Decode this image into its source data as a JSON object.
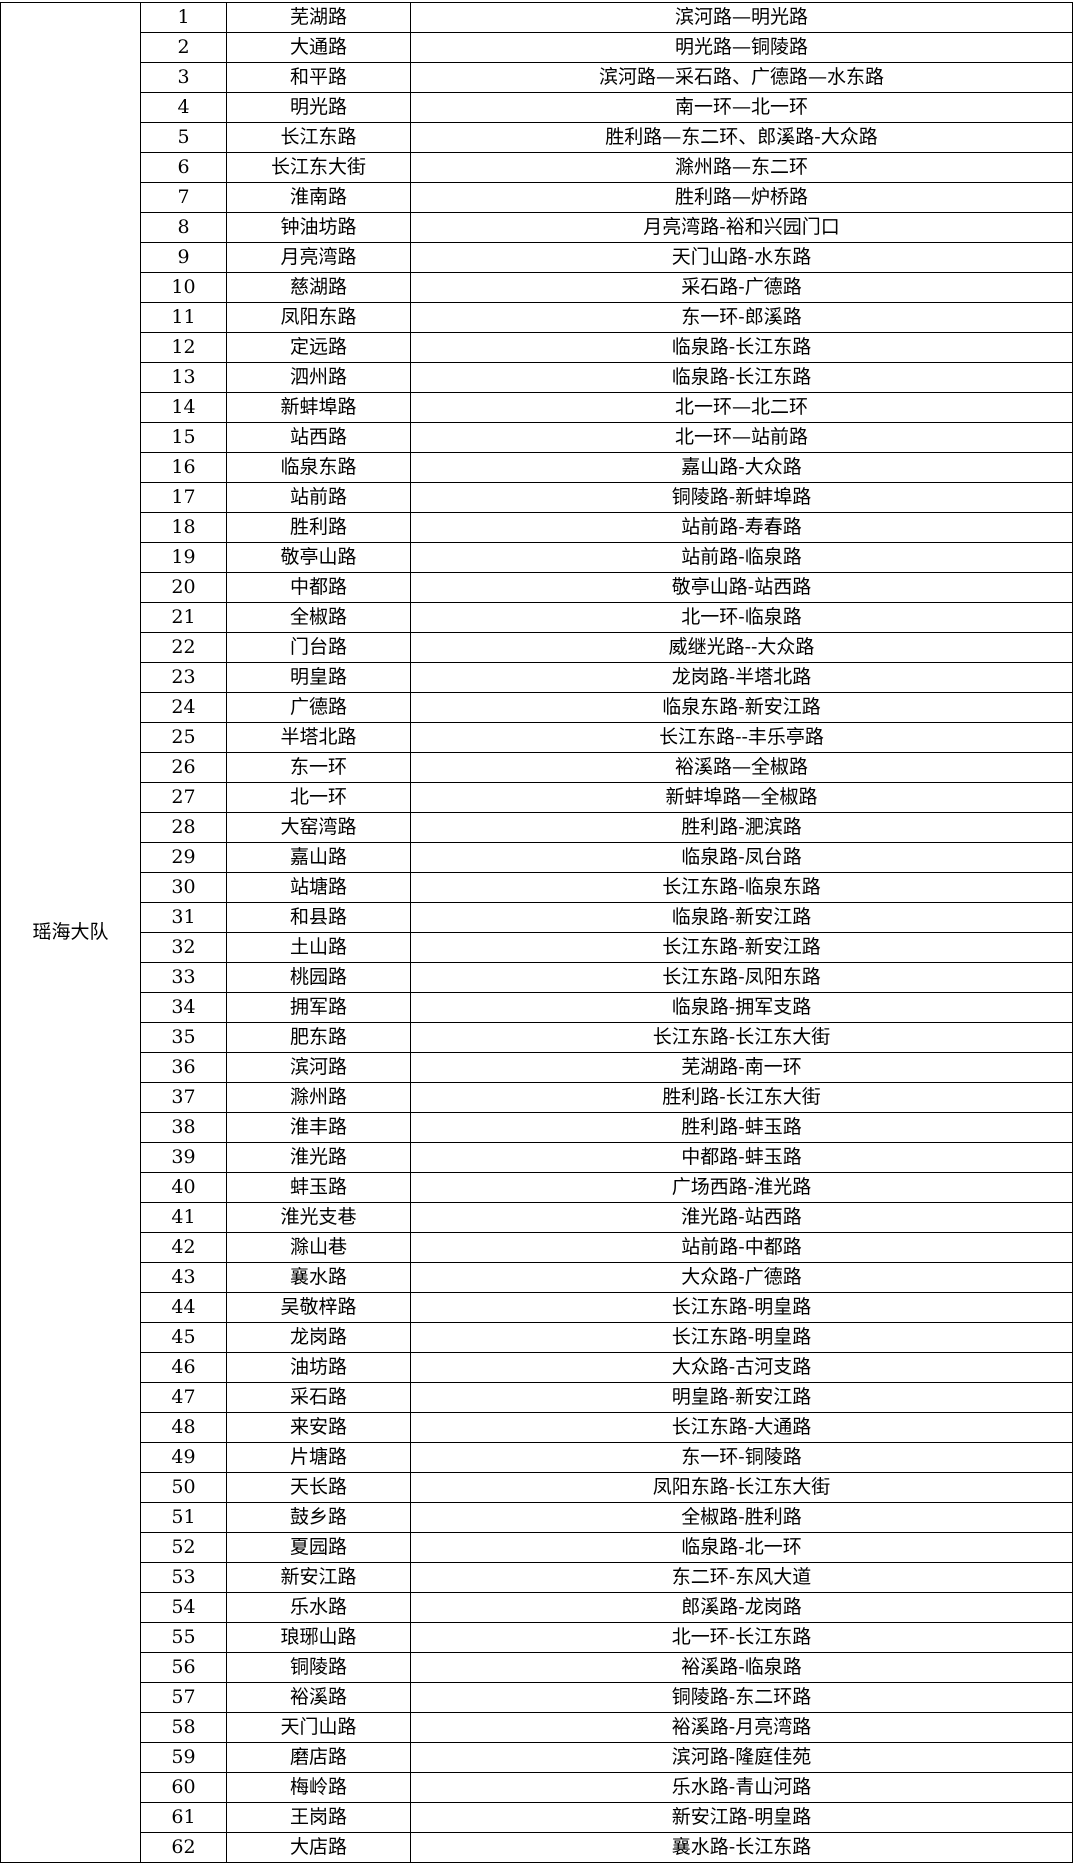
{
  "group": "瑶海大队",
  "rows": [
    [
      1,
      "芜湖路",
      "滨河路—明光路"
    ],
    [
      2,
      "大通路",
      "明光路—铜陵路"
    ],
    [
      3,
      "和平路",
      "滨河路—采石路、广德路—水东路"
    ],
    [
      4,
      "明光路",
      "南一环—北一环"
    ],
    [
      5,
      "长江东路",
      "胜利路—东二环、郎溪路-大众路"
    ],
    [
      6,
      "长江东大街",
      "滁州路—东二环"
    ],
    [
      7,
      "淮南路",
      "胜利路—炉桥路"
    ],
    [
      8,
      "钟油坊路",
      "月亮湾路-裕和兴园门口"
    ],
    [
      9,
      "月亮湾路",
      "天门山路-水东路"
    ],
    [
      10,
      "慈湖路",
      "采石路-广德路"
    ],
    [
      11,
      "凤阳东路",
      "东一环-郎溪路"
    ],
    [
      12,
      "定远路",
      "临泉路-长江东路"
    ],
    [
      13,
      "泗州路",
      "临泉路-长江东路"
    ],
    [
      14,
      "新蚌埠路",
      "北一环—北二环"
    ],
    [
      15,
      "站西路",
      "北一环—站前路"
    ],
    [
      16,
      "临泉东路",
      "嘉山路-大众路"
    ],
    [
      17,
      "站前路",
      "铜陵路-新蚌埠路"
    ],
    [
      18,
      "胜利路",
      "站前路-寿春路"
    ],
    [
      19,
      "敬亭山路",
      "站前路-临泉路"
    ],
    [
      20,
      "中都路",
      "敬亭山路-站西路"
    ],
    [
      21,
      "全椒路",
      "北一环-临泉路"
    ],
    [
      22,
      "门台路",
      "威继光路--大众路"
    ],
    [
      23,
      "明皇路",
      "龙岗路-半塔北路"
    ],
    [
      24,
      "广德路",
      "临泉东路-新安江路"
    ],
    [
      25,
      "半塔北路",
      "长江东路--丰乐亭路"
    ],
    [
      26,
      "东一环",
      "裕溪路—全椒路"
    ],
    [
      27,
      "北一环",
      "新蚌埠路—全椒路"
    ],
    [
      28,
      "大窑湾路",
      "胜利路-淝滨路"
    ],
    [
      29,
      "嘉山路",
      "临泉路-凤台路"
    ],
    [
      30,
      "站塘路",
      "长江东路-临泉东路"
    ],
    [
      31,
      "和县路",
      "临泉路-新安江路"
    ],
    [
      32,
      "土山路",
      "长江东路-新安江路"
    ],
    [
      33,
      "桃园路",
      "长江东路-凤阳东路"
    ],
    [
      34,
      "拥军路",
      "临泉路-拥军支路"
    ],
    [
      35,
      "肥东路",
      "长江东路-长江东大街"
    ],
    [
      36,
      "滨河路",
      "芜湖路-南一环"
    ],
    [
      37,
      "滁州路",
      "胜利路-长江东大街"
    ],
    [
      38,
      "淮丰路",
      "胜利路-蚌玉路"
    ],
    [
      39,
      "淮光路",
      "中都路-蚌玉路"
    ],
    [
      40,
      "蚌玉路",
      "广场西路-淮光路"
    ],
    [
      41,
      "淮光支巷",
      "淮光路-站西路"
    ],
    [
      42,
      "滁山巷",
      "站前路-中都路"
    ],
    [
      43,
      "襄水路",
      "大众路-广德路"
    ],
    [
      44,
      "吴敬梓路",
      "长江东路-明皇路"
    ],
    [
      45,
      "龙岗路",
      "长江东路-明皇路"
    ],
    [
      46,
      "油坊路",
      "大众路-古河支路"
    ],
    [
      47,
      "采石路",
      "明皇路-新安江路"
    ],
    [
      48,
      "来安路",
      "长江东路-大通路"
    ],
    [
      49,
      "片塘路",
      "东一环-铜陵路"
    ],
    [
      50,
      "天长路",
      "凤阳东路-长江东大街"
    ],
    [
      51,
      "鼓乡路",
      "全椒路-胜利路"
    ],
    [
      52,
      "夏园路",
      "临泉路-北一环"
    ],
    [
      53,
      "新安江路",
      "东二环-东风大道"
    ],
    [
      54,
      "乐水路",
      "郎溪路-龙岗路"
    ],
    [
      55,
      "琅琊山路",
      "北一环-长江东路"
    ],
    [
      56,
      "铜陵路",
      "裕溪路-临泉路"
    ],
    [
      57,
      "裕溪路",
      "铜陵路-东二环路"
    ],
    [
      58,
      "天门山路",
      "裕溪路-月亮湾路"
    ],
    [
      59,
      "磨店路",
      "滨河路-隆庭佳苑"
    ],
    [
      60,
      "梅岭路",
      "乐水路-青山河路"
    ],
    [
      61,
      "王岗路",
      "新安江路-明皇路"
    ],
    [
      62,
      "大店路",
      "襄水路-长江东路"
    ]
  ]
}
